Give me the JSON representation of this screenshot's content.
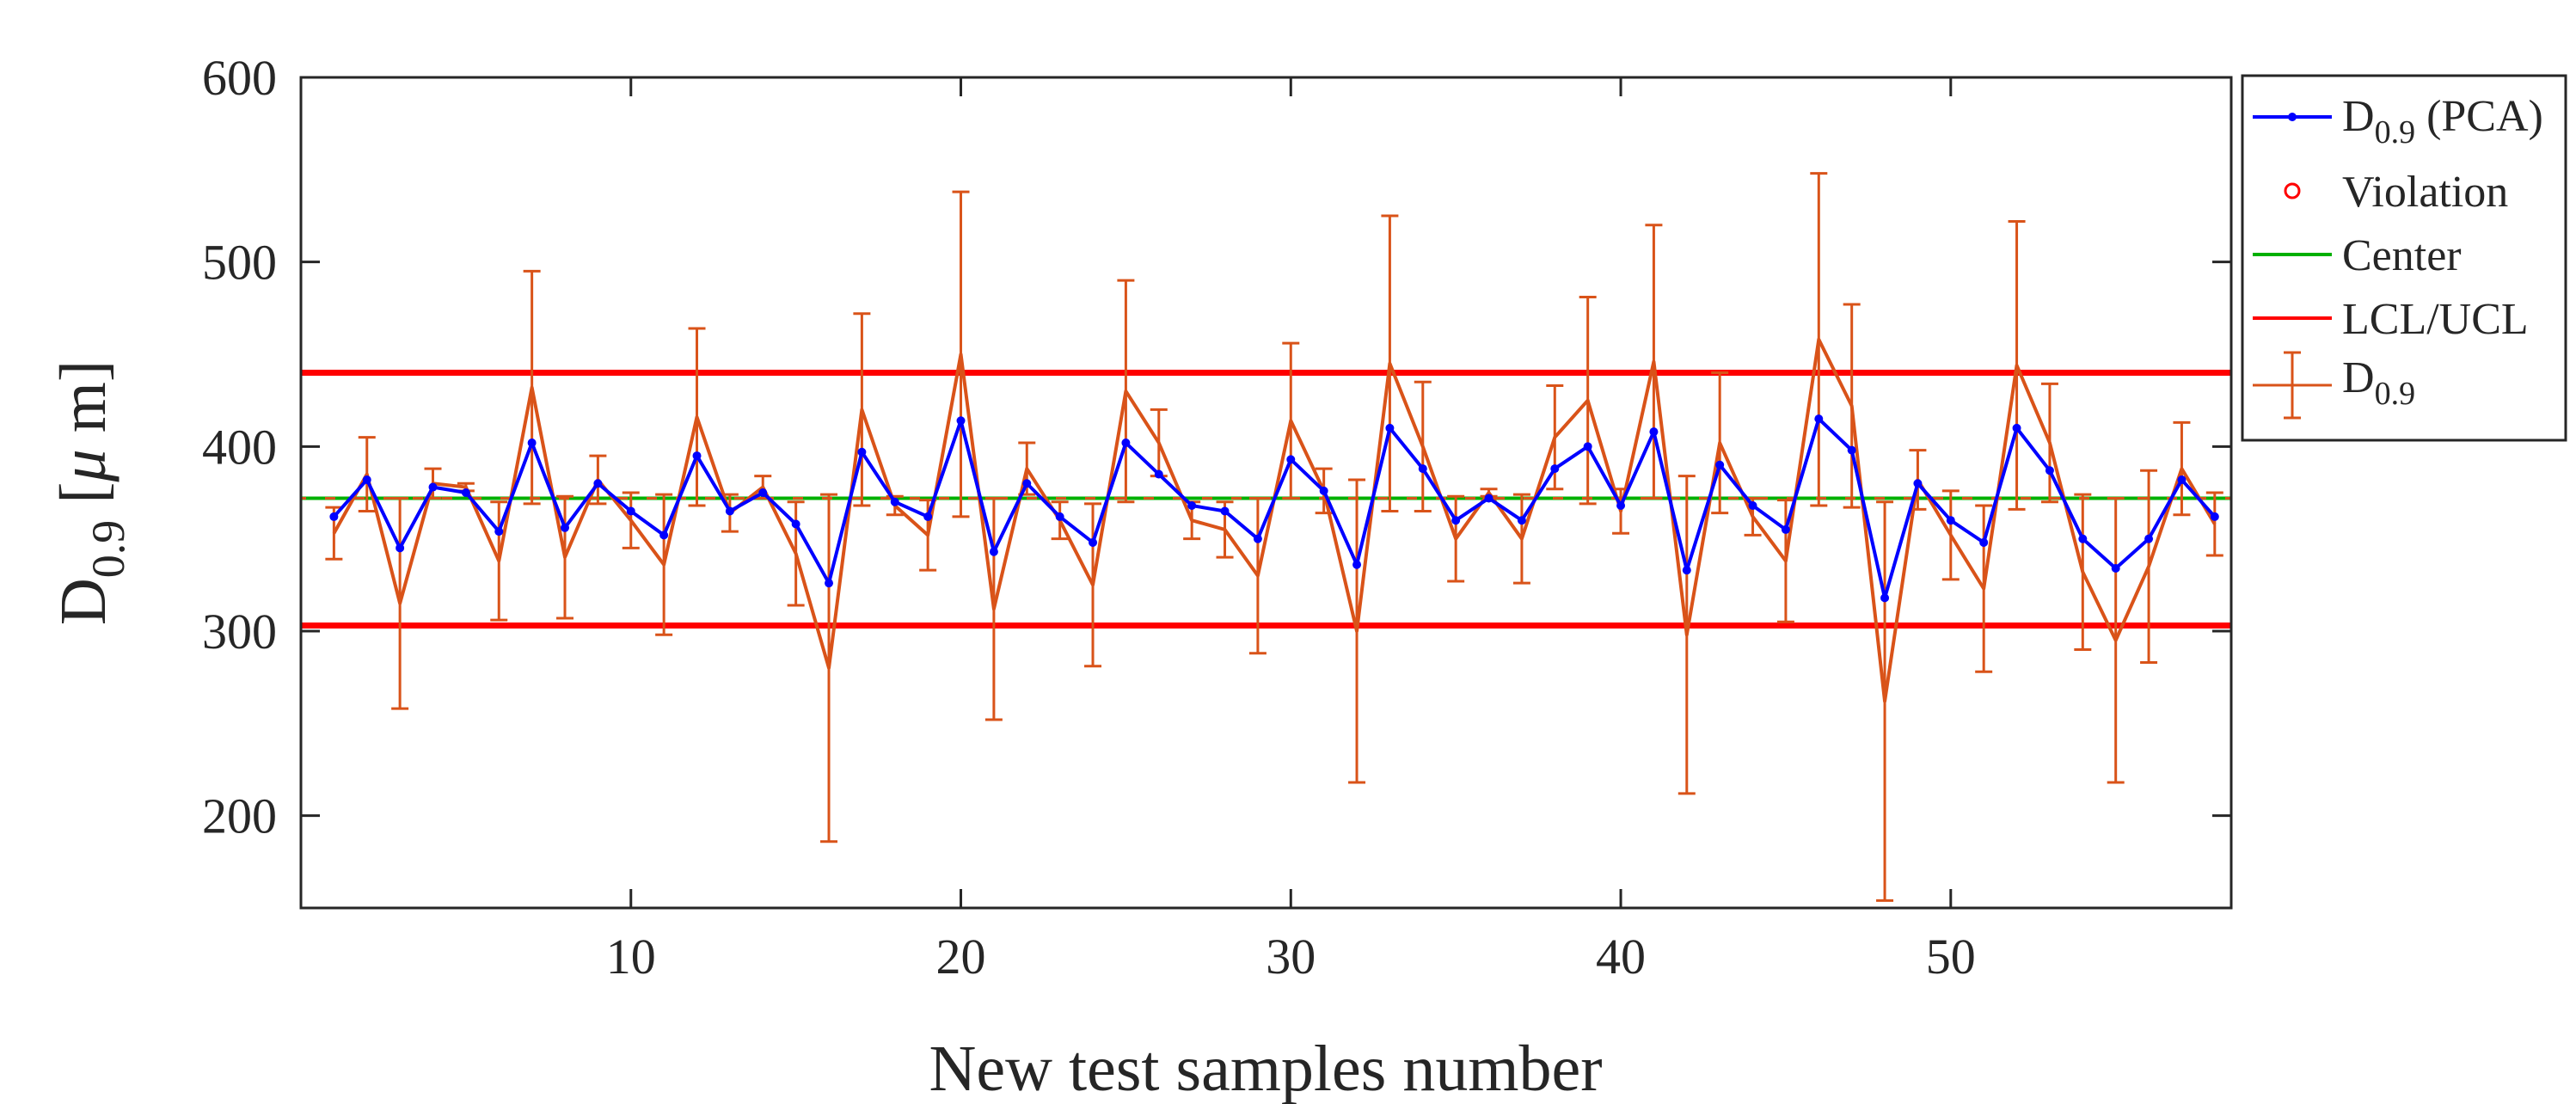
{
  "chart_data": {
    "type": "line",
    "title": "",
    "xlabel": "New test samples number",
    "ylabel": {
      "main": "D",
      "sub": "0.9",
      "unit": " [",
      "mu": "μ",
      "unit_end": " m]"
    },
    "xlim": [
      0,
      58.5
    ],
    "ylim": [
      150,
      600
    ],
    "xticks": [
      10,
      20,
      30,
      40,
      50
    ],
    "yticks": [
      200,
      300,
      400,
      500,
      600
    ],
    "center": 372,
    "lcl": 303,
    "ucl": 440,
    "x": [
      1,
      2,
      3,
      4,
      5,
      6,
      7,
      8,
      9,
      10,
      11,
      12,
      13,
      14,
      15,
      16,
      17,
      18,
      19,
      20,
      21,
      22,
      23,
      24,
      25,
      26,
      27,
      28,
      29,
      30,
      31,
      32,
      33,
      34,
      35,
      36,
      37,
      38,
      39,
      40,
      41,
      42,
      43,
      44,
      45,
      46,
      47,
      48,
      49,
      50,
      51,
      52,
      53,
      54,
      55,
      56,
      57,
      58
    ],
    "series": [
      {
        "name": "D0.9 (PCA)",
        "color": "#0000ff",
        "values": [
          362,
          382,
          345,
          378,
          375,
          354,
          402,
          356,
          380,
          365,
          352,
          395,
          365,
          375,
          358,
          326,
          397,
          370,
          362,
          414,
          343,
          380,
          362,
          348,
          402,
          385,
          368,
          365,
          350,
          393,
          376,
          336,
          410,
          388,
          360,
          372,
          360,
          388,
          400,
          368,
          408,
          333,
          390,
          368,
          355,
          415,
          398,
          318,
          380,
          360,
          348,
          410,
          387,
          350,
          334,
          350,
          382,
          362
        ]
      },
      {
        "name": "D0.9",
        "color": "#d95319",
        "values": [
          353,
          385,
          315,
          380,
          378,
          338,
          432,
          340,
          382,
          360,
          336,
          416,
          364,
          378,
          342,
          280,
          420,
          368,
          352,
          450,
          312,
          388,
          360,
          325,
          430,
          402,
          360,
          355,
          330,
          414,
          376,
          300,
          445,
          400,
          350,
          375,
          350,
          405,
          425,
          365,
          446,
          298,
          402,
          362,
          338,
          458,
          422,
          262,
          382,
          352,
          323,
          444,
          402,
          332,
          295,
          335,
          388,
          358
        ]
      }
    ],
    "error_halfwidths": [
      14,
      20,
      57,
      8,
      2,
      32,
      63,
      33,
      13,
      15,
      38,
      48,
      10,
      6,
      28,
      94,
      52,
      5,
      19,
      88,
      60,
      14,
      10,
      44,
      60,
      18,
      10,
      15,
      42,
      42,
      12,
      82,
      80,
      35,
      23,
      2,
      24,
      28,
      56,
      12,
      74,
      86,
      38,
      10,
      33,
      90,
      55,
      108,
      16,
      24,
      45,
      78,
      32,
      42,
      77,
      52,
      25,
      17
    ],
    "legend": {
      "position": "right-outside",
      "entries": [
        {
          "key": "pca",
          "label": "D",
          "sub": "0.9",
          "suffix": " (PCA)"
        },
        {
          "key": "violation",
          "label": "Violation"
        },
        {
          "key": "center",
          "label": "Center"
        },
        {
          "key": "limits",
          "label": "LCL/UCL"
        },
        {
          "key": "errbar",
          "label": "D",
          "sub": "0.9"
        }
      ]
    },
    "colors": {
      "pca": "#0000ff",
      "violation": "#ff0000",
      "center": "#00b000",
      "limits": "#ff0000",
      "errbar": "#d95319",
      "axis": "#262626"
    }
  }
}
